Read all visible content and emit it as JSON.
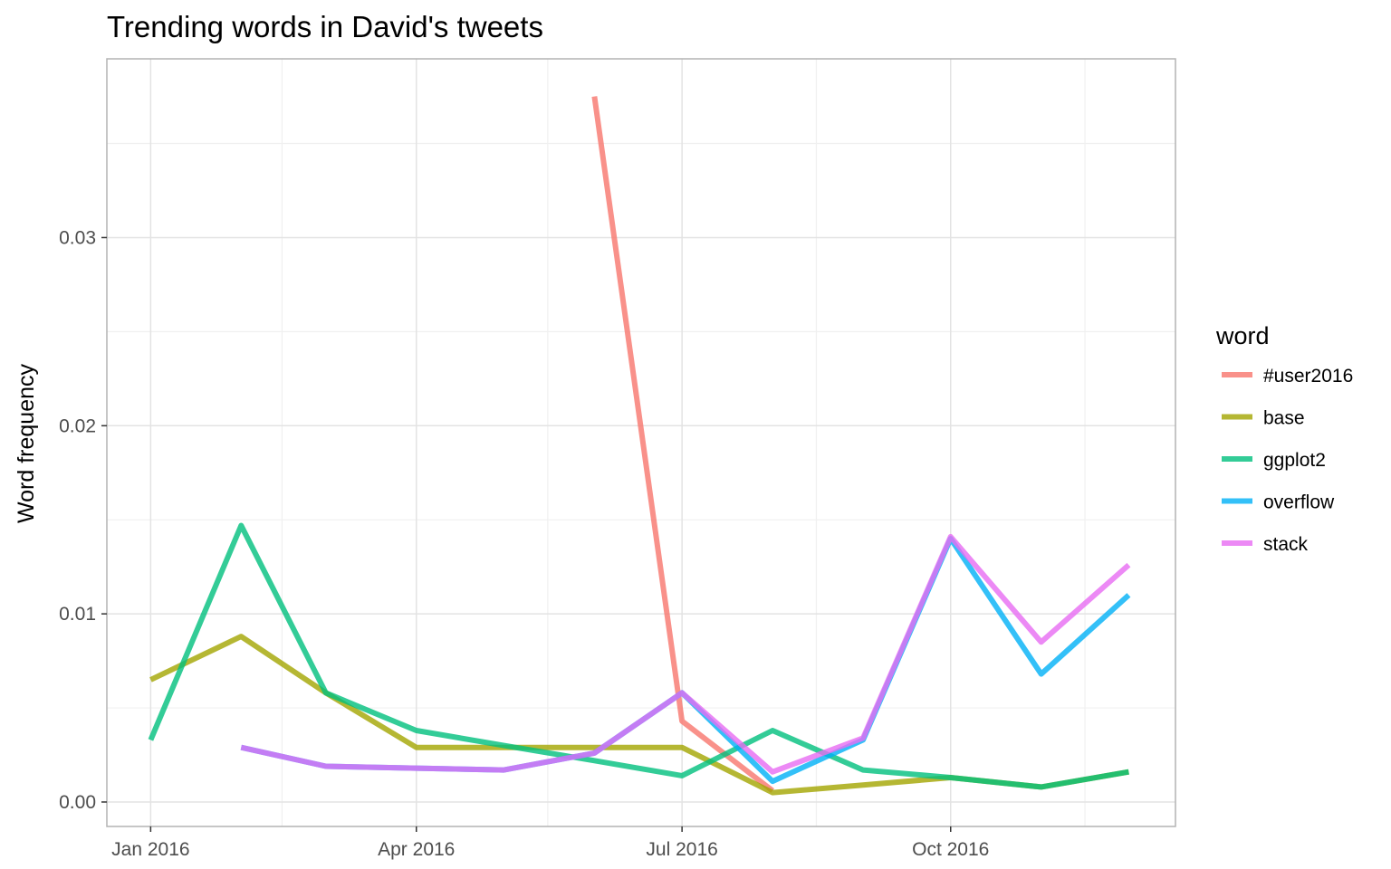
{
  "chart_data": {
    "type": "line",
    "title": "Trending words in David's tweets",
    "xlabel": "",
    "ylabel": "Word frequency",
    "x": [
      "2016-01-01",
      "2016-02-01",
      "2016-03-01",
      "2016-04-01",
      "2016-05-01",
      "2016-06-01",
      "2016-07-01",
      "2016-08-01",
      "2016-09-01",
      "2016-10-01",
      "2016-11-01",
      "2016-12-01"
    ],
    "xlim": [
      "2015-12-17",
      "2016-12-17"
    ],
    "ylim": [
      -0.0013,
      0.0395
    ],
    "xticks": [
      {
        "date": "2016-01-01",
        "label": "Jan 2016"
      },
      {
        "date": "2016-04-01",
        "label": "Apr 2016"
      },
      {
        "date": "2016-07-01",
        "label": "Jul 2016"
      },
      {
        "date": "2016-10-01",
        "label": "Oct 2016"
      }
    ],
    "xminor": [
      "2016-02-15",
      "2016-05-16",
      "2016-08-16",
      "2016-11-16"
    ],
    "yticks": [
      {
        "value": 0.0,
        "label": "0.00"
      },
      {
        "value": 0.01,
        "label": "0.01"
      },
      {
        "value": 0.02,
        "label": "0.02"
      },
      {
        "value": 0.03,
        "label": "0.03"
      }
    ],
    "yminor": [
      0.005,
      0.015,
      0.025,
      0.035
    ],
    "grid": true,
    "legend": {
      "title": "word",
      "position": "right"
    },
    "series": [
      {
        "name": "#user2016",
        "color": "#F8766D",
        "values": [
          null,
          null,
          null,
          null,
          null,
          0.0375,
          0.0043,
          0.0006,
          null,
          null,
          null,
          null
        ]
      },
      {
        "name": "base",
        "color": "#A3A500",
        "values": [
          0.0065,
          0.0088,
          0.0058,
          0.0029,
          0.0029,
          0.0029,
          0.0029,
          0.0005,
          0.0009,
          0.0013,
          0.0008,
          0.0016
        ]
      },
      {
        "name": "ggplot2",
        "color": "#00BF7D",
        "values": [
          0.0033,
          0.0147,
          0.0058,
          0.0038,
          0.003,
          0.0022,
          0.0014,
          0.0038,
          0.0017,
          0.0013,
          0.0008,
          0.0016
        ]
      },
      {
        "name": "overflow",
        "color": "#00B0F6",
        "values": [
          null,
          0.0029,
          0.0019,
          0.0018,
          0.0017,
          0.0026,
          0.0058,
          0.0011,
          0.0033,
          0.014,
          0.0068,
          0.011
        ]
      },
      {
        "name": "stack",
        "color": "#E76BF3",
        "values": [
          null,
          0.0029,
          0.0019,
          0.0018,
          0.0017,
          0.0026,
          0.0058,
          0.0016,
          0.0034,
          0.0141,
          0.0085,
          0.0126
        ]
      }
    ]
  }
}
